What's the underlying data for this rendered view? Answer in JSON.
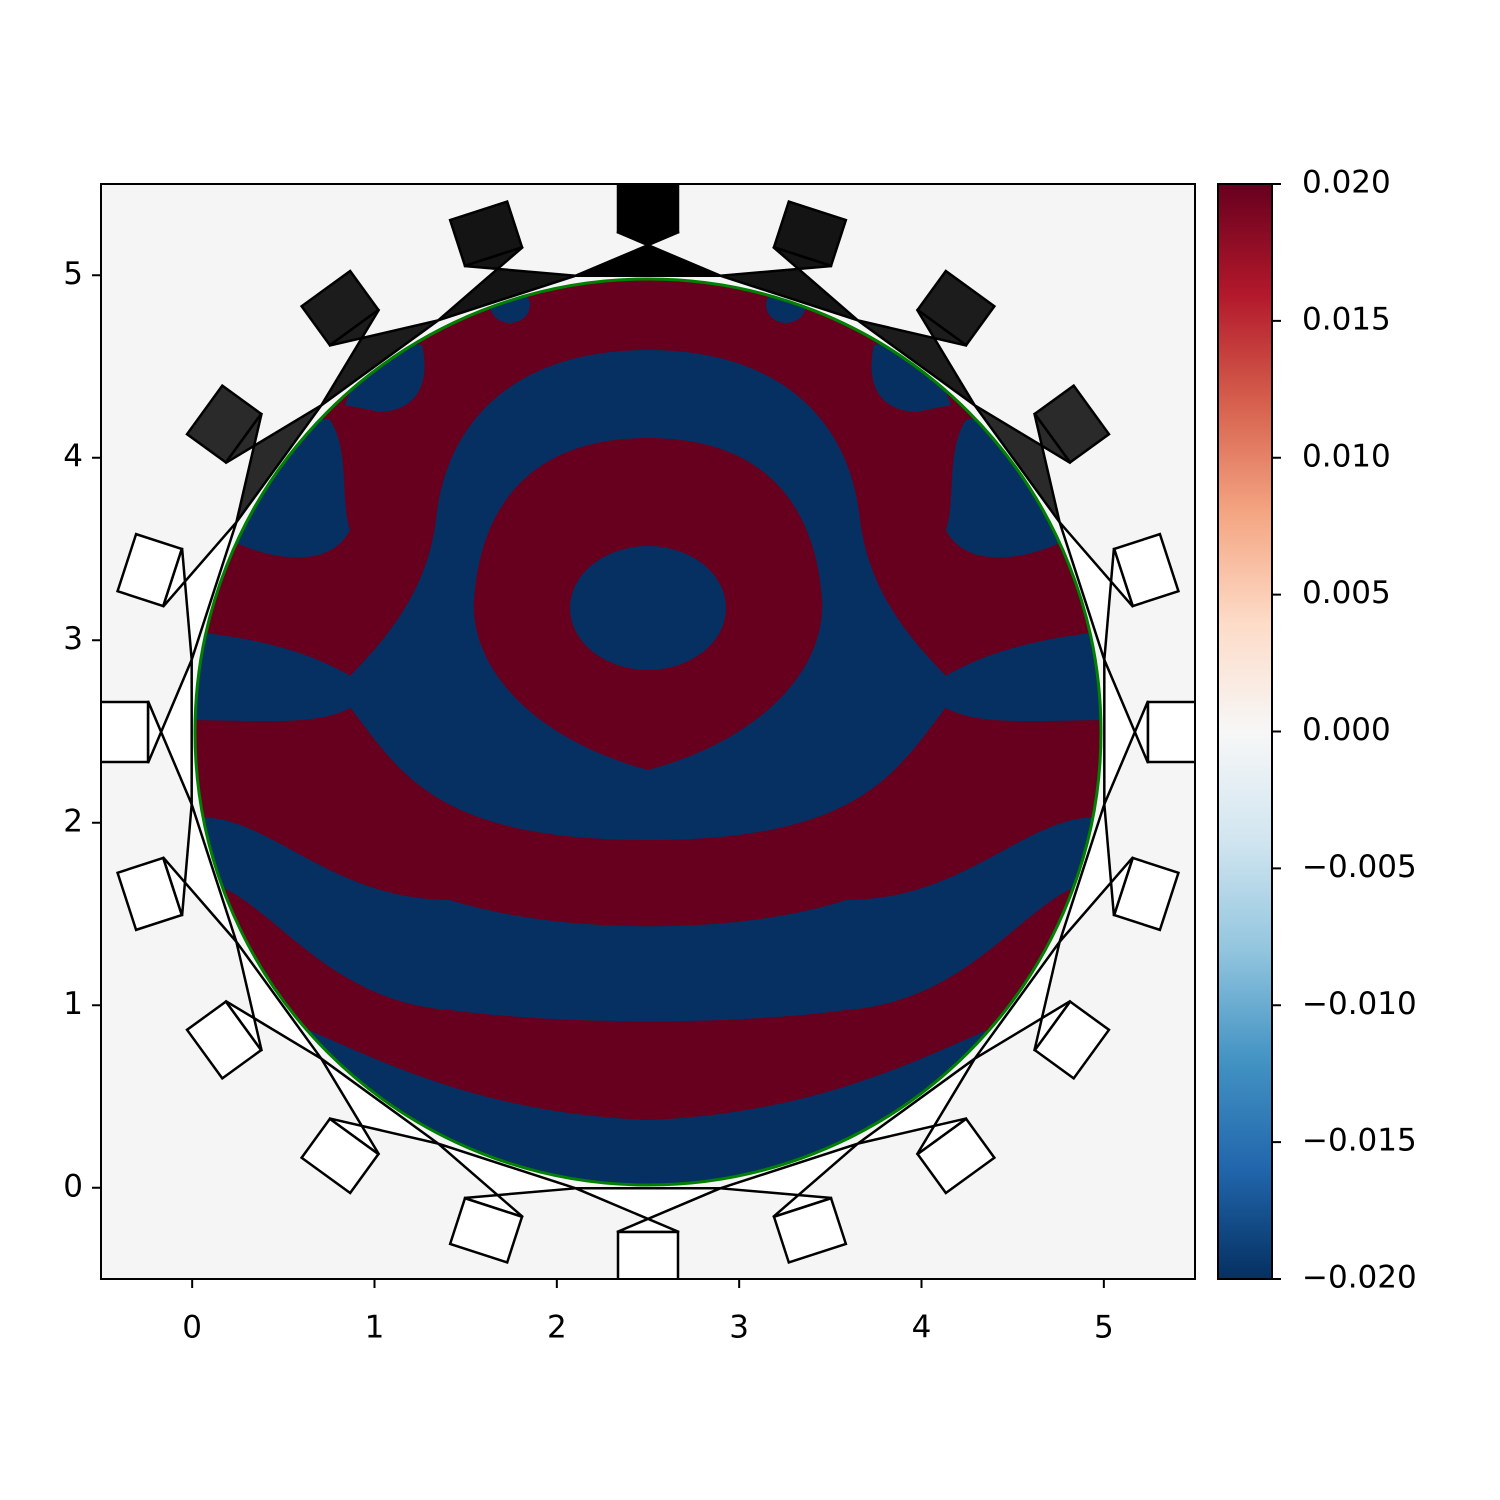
{
  "chart_data": {
    "type": "field",
    "xlim": [
      -0.5,
      5.5
    ],
    "xticks": [
      0,
      1,
      2,
      3,
      4,
      5
    ],
    "ylim": [
      -0.5,
      5.5
    ],
    "yticks": [
      0,
      1,
      2,
      3,
      4,
      5
    ],
    "colorbar": {
      "lim": [
        -0.02,
        0.02
      ],
      "ticks": [
        {
          "value": 0.02,
          "label": "0.020"
        },
        {
          "value": 0.015,
          "label": "0.015"
        },
        {
          "value": 0.01,
          "label": "0.010"
        },
        {
          "value": 0.005,
          "label": "0.005"
        },
        {
          "value": 0,
          "label": "0.000"
        },
        {
          "value": -0.005,
          "label": "−0.005"
        },
        {
          "value": -0.01,
          "label": "−0.010"
        },
        {
          "value": -0.015,
          "label": "−0.015"
        },
        {
          "value": -0.02,
          "label": "−0.020"
        }
      ],
      "colors": [
        "#053061",
        "#2166ac",
        "#4393c3",
        "#92c5de",
        "#d1e5f0",
        "#f7f7f7",
        "#fddbc7",
        "#f4a582",
        "#d6604d",
        "#b2182b",
        "#67001f"
      ]
    }
  }
}
